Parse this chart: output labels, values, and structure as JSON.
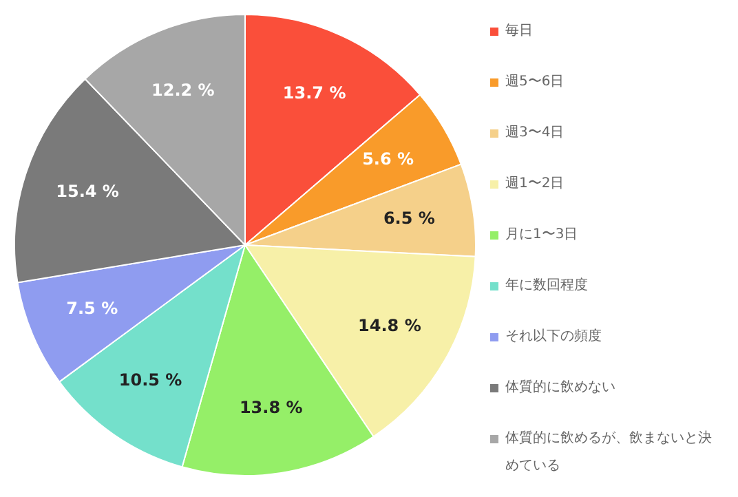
{
  "chart_data": {
    "type": "pie",
    "categories": [
      "毎日",
      "週5〜6日",
      "週3〜4日",
      "週1〜2日",
      "月に1〜3日",
      "年に数回程度",
      "それ以下の頻度",
      "体質的に飲めない",
      "体質的に飲めるが、飲まないと決めている"
    ],
    "values": [
      13.7,
      5.6,
      6.5,
      14.8,
      13.8,
      10.5,
      7.5,
      15.4,
      12.2
    ],
    "value_labels": [
      "13.7 %",
      "5.6 %",
      "6.5 %",
      "14.8 %",
      "13.8 %",
      "10.5 %",
      "7.5 %",
      "15.4 %",
      "12.2 %"
    ],
    "colors": [
      "#fa4f3a",
      "#f99b2a",
      "#f5d08a",
      "#f7f0a8",
      "#95ef68",
      "#74e0cb",
      "#8f9cf0",
      "#7a7a7a",
      "#a7a7a7"
    ],
    "legend": "right"
  }
}
